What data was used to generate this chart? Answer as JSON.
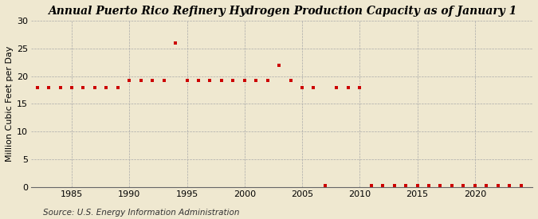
{
  "title": "Annual Puerto Rico Refinery Hydrogen Production Capacity as of January 1",
  "ylabel": "Million Cubic Feet per Day",
  "source": "Source: U.S. Energy Information Administration",
  "background_color": "#EFE8D0",
  "plot_background_color": "#EFE8D0",
  "marker_color": "#CC0000",
  "marker": "s",
  "marker_size": 3.5,
  "xlim": [
    1981.5,
    2025
  ],
  "ylim": [
    0,
    30
  ],
  "yticks": [
    0,
    5,
    10,
    15,
    20,
    25,
    30
  ],
  "xticks": [
    1985,
    1990,
    1995,
    2000,
    2005,
    2010,
    2015,
    2020
  ],
  "years": [
    1982,
    1983,
    1984,
    1985,
    1986,
    1987,
    1988,
    1989,
    1990,
    1991,
    1992,
    1993,
    1994,
    1995,
    1996,
    1997,
    1998,
    1999,
    2000,
    2001,
    2002,
    2003,
    2004,
    2005,
    2006,
    2007,
    2008,
    2009,
    2010,
    2011,
    2012,
    2013,
    2014,
    2015,
    2016,
    2017,
    2018,
    2019,
    2020,
    2021,
    2022,
    2023,
    2024
  ],
  "values": [
    18.0,
    18.0,
    18.0,
    18.0,
    18.0,
    18.0,
    18.0,
    18.0,
    19.3,
    19.3,
    19.3,
    19.3,
    26.0,
    19.3,
    19.3,
    19.3,
    19.3,
    19.3,
    19.3,
    19.3,
    19.3,
    22.0,
    19.3,
    18.0,
    18.0,
    0.2,
    18.0,
    18.0,
    18.0,
    0.2,
    0.2,
    0.2,
    0.2,
    0.2,
    0.2,
    0.2,
    0.2,
    0.2,
    0.2,
    0.2,
    0.2,
    0.2,
    0.2
  ],
  "title_fontsize": 10,
  "label_fontsize": 8,
  "tick_fontsize": 8,
  "source_fontsize": 7.5
}
